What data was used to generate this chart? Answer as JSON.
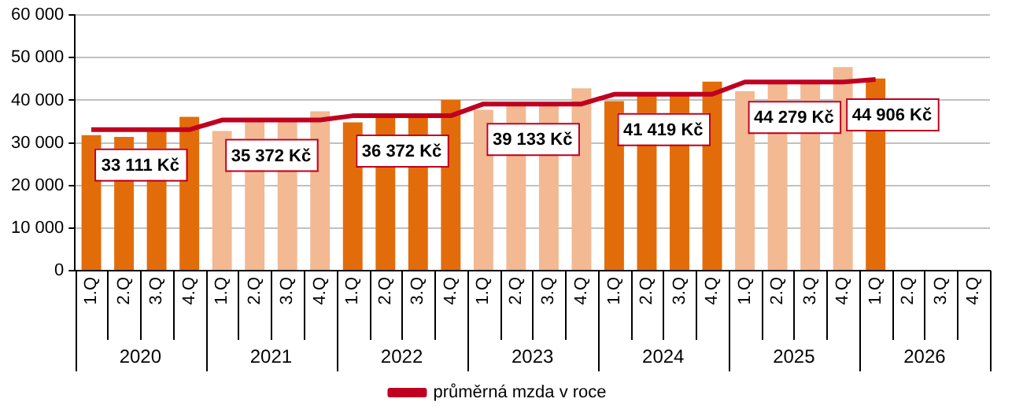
{
  "chart_data": {
    "type": "bar",
    "categories": [
      "1.Q",
      "2.Q",
      "3.Q",
      "4.Q",
      "1.Q",
      "2.Q",
      "3.Q",
      "4.Q",
      "1.Q",
      "2.Q",
      "3.Q",
      "4.Q",
      "1.Q",
      "2.Q",
      "3.Q",
      "4.Q",
      "1.Q",
      "2.Q",
      "3.Q",
      "4.Q",
      "1.Q",
      "2.Q",
      "3.Q",
      "4.Q",
      "1.Q",
      "2.Q",
      "3.Q",
      "4.Q"
    ],
    "series": [
      {
        "colors": [
          "#e36c0a",
          "#e36c0a",
          "#e36c0a",
          "#e36c0a",
          "#f2b993",
          "#f2b993",
          "#f2b993",
          "#f2b993",
          "#e36c0a",
          "#e36c0a",
          "#e36c0a",
          "#e36c0a",
          "#f2b993",
          "#f2b993",
          "#f2b993",
          "#f2b993",
          "#e36c0a",
          "#e36c0a",
          "#e36c0a",
          "#e36c0a",
          "#f2b993",
          "#f2b993",
          "#f2b993",
          "#f2b993",
          "#e36c0a",
          null,
          null,
          null
        ],
        "values": [
          31800,
          31400,
          33000,
          36100,
          32800,
          35200,
          35400,
          37400,
          34800,
          36100,
          36300,
          40100,
          37800,
          39300,
          39400,
          42800,
          39800,
          41500,
          41600,
          44400,
          42100,
          44300,
          44400,
          47800,
          45100,
          null,
          null,
          null
        ]
      },
      {
        "type": "line",
        "name": "průměrná mzda v roce",
        "color": "#c00020",
        "values": [
          33111,
          33111,
          33111,
          33111,
          35372,
          35372,
          35372,
          35372,
          36372,
          36372,
          36372,
          36372,
          39133,
          39133,
          39133,
          39133,
          41419,
          41419,
          41419,
          41419,
          44279,
          44279,
          44279,
          44279,
          44906,
          null,
          null,
          null
        ],
        "value_labels": [
          null,
          "33 111 Kč",
          null,
          null,
          null,
          "35 372 Kč",
          null,
          null,
          null,
          "36 372 Kč",
          null,
          null,
          null,
          "39 133 Kč",
          null,
          null,
          null,
          "41 419 Kč",
          null,
          null,
          null,
          "44 279 Kč",
          null,
          null,
          "44 906 Kč",
          null,
          null,
          null
        ]
      }
    ],
    "ylim": [
      0,
      60000
    ],
    "yticks": [
      {
        "value": 0,
        "label": "0"
      },
      {
        "value": 10000,
        "label": "10 000"
      },
      {
        "value": 20000,
        "label": "20 000"
      },
      {
        "value": 30000,
        "label": "30 000"
      },
      {
        "value": 40000,
        "label": "40 000"
      },
      {
        "value": 50000,
        "label": "50 000"
      },
      {
        "value": 60000,
        "label": "60 000"
      }
    ],
    "grid": "y",
    "legend": "bottom",
    "annotations": [
      "2020",
      "2021",
      "2022",
      "2023",
      "2024",
      "2025",
      "2026"
    ]
  }
}
